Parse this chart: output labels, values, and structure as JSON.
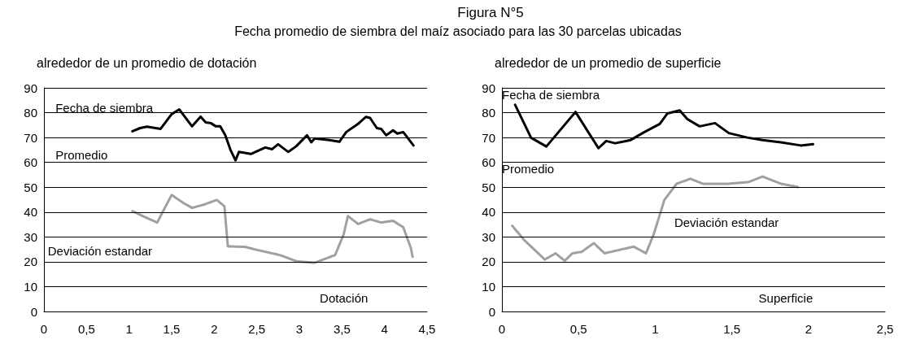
{
  "chart_data": [
    {
      "type": "other",
      "title": "Figura N°5",
      "subtitle": "Fecha promedio de siembra del maíz asociado para las 30 parcelas ubicadas"
    },
    {
      "type": "line",
      "title": "alrededor de un promedio de dotación",
      "xlim": [
        0,
        4.5
      ],
      "xticks": [
        0,
        {
          "value": 0.5,
          "label": "0,5"
        },
        1,
        {
          "value": 1.5,
          "label": "1,5"
        },
        2,
        {
          "value": 2.5,
          "label": "2,5"
        },
        3,
        {
          "value": 3.5,
          "label": "3,5"
        },
        4,
        {
          "value": 4.5,
          "label": "4,5"
        }
      ],
      "ylim": [
        0,
        90
      ],
      "yticks": [
        0,
        10,
        20,
        30,
        40,
        50,
        60,
        70,
        80,
        90
      ],
      "grid": "y",
      "marker": "none",
      "series": [
        {
          "color": "#000000",
          "line_style": "solid",
          "x": [
            1.04,
            1.13,
            1.21,
            1.37,
            1.5,
            1.59,
            1.74,
            1.84,
            1.9,
            1.96,
            2.02,
            2.07,
            2.13,
            2.19,
            2.25,
            2.29,
            2.43,
            2.6,
            2.68,
            2.75,
            2.87,
            2.96,
            3.09,
            3.14,
            3.18,
            3.35,
            3.47,
            3.55,
            3.69,
            3.78,
            3.83,
            3.91,
            3.96,
            4.02,
            4.1,
            4.15,
            4.22,
            4.34
          ],
          "values": [
            72.5,
            73.8,
            74.4,
            73.5,
            79.4,
            81.3,
            74.5,
            78.4,
            76.1,
            75.8,
            74.5,
            74.5,
            70.9,
            65.1,
            60.8,
            64.2,
            63.4,
            66,
            65.3,
            67.3,
            64.2,
            66.4,
            70.9,
            68.1,
            69.6,
            69,
            68.3,
            72.2,
            75.5,
            78.3,
            77.9,
            73.8,
            73.5,
            70.9,
            72.9,
            71.6,
            72.2,
            66.8
          ]
        },
        {
          "color": "#a0a0a0",
          "line_style": "dotted",
          "x": [
            1.04,
            1.16,
            1.33,
            1.5,
            1.64,
            1.74,
            1.88,
            2.03,
            2.12,
            2.16,
            2.36,
            2.5,
            2.77,
            2.97,
            3.18,
            3.42,
            3.52,
            3.57,
            3.69,
            3.83,
            3.96,
            4.1,
            4.22,
            4.31,
            4.33
          ],
          "values": [
            40.4,
            38.4,
            35.8,
            46.9,
            43.6,
            41.7,
            43,
            44.9,
            42.3,
            26.2,
            26,
            24.8,
            22.7,
            20.2,
            19.6,
            22.7,
            31,
            38.4,
            35.2,
            37.1,
            35.8,
            36.5,
            33.9,
            25.5,
            22
          ]
        }
      ],
      "annotations": [
        "Fecha de siembra",
        "Promedio",
        "Deviación estandar",
        "Dotación"
      ]
    },
    {
      "type": "line",
      "title": "alrededor de un promedio de superficie",
      "xlim": [
        0,
        2.5
      ],
      "xticks": [
        0,
        {
          "value": 0.5,
          "label": "0,5"
        },
        1,
        {
          "value": 1.5,
          "label": "1,5"
        },
        2,
        {
          "value": 2.5,
          "label": "2,5"
        }
      ],
      "ylim": [
        0,
        90
      ],
      "yticks": [
        0,
        10,
        20,
        30,
        40,
        50,
        60,
        70,
        80,
        90
      ],
      "grid": "y",
      "marker": "none",
      "series": [
        {
          "color": "#000000",
          "line_style": "solid",
          "x": [
            0.086,
            0.19,
            0.29,
            0.48,
            0.63,
            0.68,
            0.74,
            0.84,
            0.93,
            1.03,
            1.08,
            1.16,
            1.21,
            1.29,
            1.39,
            1.48,
            1.6,
            1.7,
            1.82,
            1.95,
            2.03
          ],
          "values": [
            83.2,
            69.9,
            66.4,
            80.3,
            65.7,
            68.6,
            67.7,
            69,
            72.2,
            75.5,
            79.7,
            80.9,
            77.4,
            74.5,
            75.8,
            71.8,
            70,
            69,
            68.1,
            66.8,
            67.3
          ]
        },
        {
          "color": "#a0a0a0",
          "line_style": "dotted",
          "x": [
            0.067,
            0.146,
            0.28,
            0.35,
            0.41,
            0.46,
            0.52,
            0.6,
            0.67,
            0.86,
            0.94,
            0.99,
            1.06,
            1.14,
            1.23,
            1.31,
            1.48,
            1.61,
            1.7,
            1.82,
            1.93
          ],
          "values": [
            34.5,
            28.7,
            20.9,
            23.4,
            20.4,
            23.4,
            24,
            27.5,
            23.4,
            26.1,
            23.4,
            31,
            44.9,
            51.4,
            53.4,
            51.4,
            51.4,
            52.1,
            54.3,
            51.4,
            50.1
          ]
        }
      ],
      "annotations": [
        "Fecha de siembra",
        "Promedio",
        "Deviación estandar",
        "Superficie"
      ]
    }
  ]
}
